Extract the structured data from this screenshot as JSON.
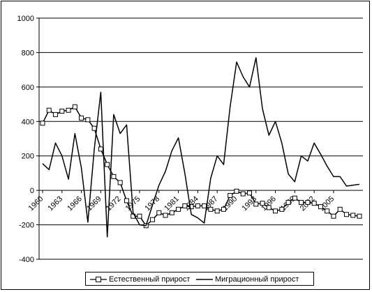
{
  "chart_data": {
    "type": "line",
    "title": "",
    "xlabel": "",
    "ylabel": "",
    "x": [
      1960,
      1961,
      1962,
      1963,
      1964,
      1965,
      1966,
      1967,
      1968,
      1969,
      1970,
      1971,
      1972,
      1973,
      1974,
      1975,
      1976,
      1977,
      1978,
      1979,
      1980,
      1981,
      1982,
      1983,
      1984,
      1985,
      1986,
      1987,
      1988,
      1989,
      1990,
      1991,
      1992,
      1993,
      1994,
      1995,
      1996,
      1997,
      1998,
      1999,
      2000,
      2001,
      2002,
      2003,
      2004,
      2005,
      2006,
      2007,
      2008,
      2009
    ],
    "x_tick_labels": [
      "1960",
      "1963",
      "1966",
      "1969",
      "1972",
      "1975",
      "1978",
      "1981",
      "1984",
      "1987",
      "1990",
      "1993",
      "1996",
      "1999",
      "2002",
      "2005"
    ],
    "ylim": [
      -400,
      1000
    ],
    "y_ticks": [
      -400,
      -200,
      0,
      200,
      400,
      600,
      800,
      1000
    ],
    "grid": true,
    "legend_position": "bottom",
    "series": [
      {
        "name": "Естественный прирост",
        "marker": "square",
        "values": [
          390,
          465,
          440,
          460,
          465,
          485,
          420,
          410,
          360,
          240,
          150,
          80,
          45,
          -60,
          -150,
          -150,
          -205,
          -170,
          -130,
          -145,
          -130,
          -110,
          -90,
          -95,
          -90,
          -90,
          -110,
          -120,
          -110,
          -30,
          -5,
          -20,
          -15,
          -80,
          -75,
          -100,
          -120,
          -110,
          -70,
          -45,
          -70,
          -70,
          -75,
          -95,
          -120,
          -150,
          -110,
          -140,
          -145,
          -150
        ]
      },
      {
        "name": "Миграционный прирост",
        "marker": "none",
        "values": [
          155,
          120,
          275,
          200,
          65,
          330,
          130,
          -185,
          240,
          570,
          -270,
          440,
          330,
          380,
          -130,
          -200,
          -205,
          -85,
          30,
          110,
          230,
          305,
          100,
          -140,
          -160,
          -190,
          70,
          200,
          150,
          485,
          745,
          660,
          600,
          770,
          475,
          320,
          400,
          275,
          95,
          50,
          200,
          170,
          275,
          210,
          140,
          80,
          80,
          25,
          30,
          35
        ]
      }
    ]
  }
}
